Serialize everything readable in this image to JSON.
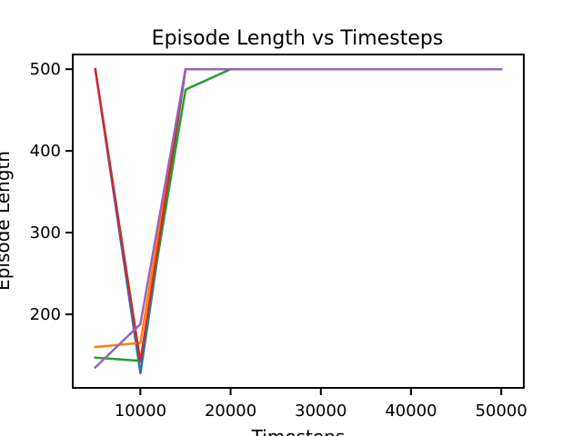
{
  "chart_data": {
    "type": "line",
    "title": "Episode Length vs Timesteps",
    "xlabel": "Timesteps",
    "ylabel": "Episode Length",
    "x": [
      5000,
      10000,
      15000,
      20000,
      25000,
      30000,
      35000,
      40000,
      45000,
      50000
    ],
    "xlim": [
      2500,
      52500
    ],
    "ylim": [
      110,
      518
    ],
    "xticks": [
      10000,
      20000,
      30000,
      40000,
      50000
    ],
    "yticks": [
      200,
      300,
      400,
      500
    ],
    "grid": false,
    "series": [
      {
        "color": "#1f77b4",
        "values": [
          500,
          128,
          500,
          500,
          500,
          500,
          500,
          500,
          500,
          500
        ]
      },
      {
        "color": "#ff7f0e",
        "values": [
          160,
          165,
          500,
          500,
          500,
          500,
          500,
          500,
          500,
          500
        ]
      },
      {
        "color": "#2ca02c",
        "values": [
          147,
          143,
          475,
          500,
          500,
          500,
          500,
          500,
          500,
          500
        ]
      },
      {
        "color": "#d62728",
        "values": [
          500,
          142,
          500,
          500,
          500,
          500,
          500,
          500,
          500,
          500
        ]
      },
      {
        "color": "#9467bd",
        "values": [
          135,
          188,
          500,
          500,
          500,
          500,
          500,
          500,
          500,
          500
        ]
      }
    ]
  }
}
